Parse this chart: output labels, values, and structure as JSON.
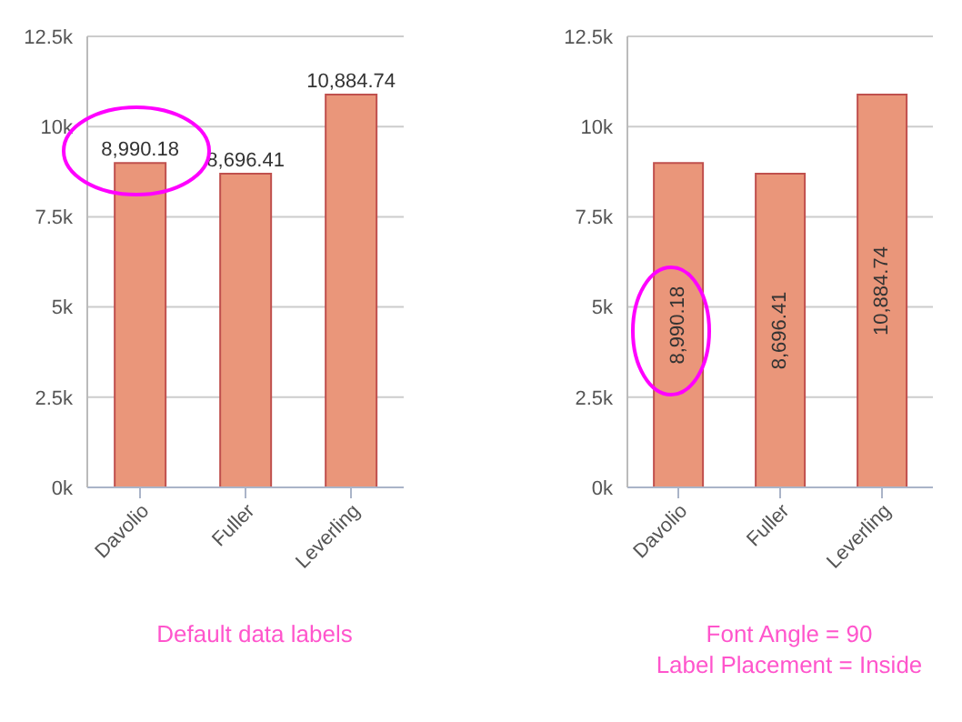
{
  "chart_data": [
    {
      "type": "bar",
      "categories": [
        "Davolio",
        "Fuller",
        "Leverling"
      ],
      "values": [
        8990.18,
        8696.41,
        10884.74
      ],
      "value_labels": [
        "8,990.18",
        "8,696.41",
        "10,884.74"
      ],
      "color": "#ea967a",
      "ylim": [
        0,
        12500
      ],
      "yticks": [
        {
          "value": 0,
          "label": "0k"
        },
        {
          "value": 2500,
          "label": "2.5k"
        },
        {
          "value": 5000,
          "label": "5k"
        },
        {
          "value": 7500,
          "label": "7.5k"
        },
        {
          "value": 10000,
          "label": "10k"
        },
        {
          "value": 12500,
          "label": "12.5k"
        }
      ],
      "grid": "y",
      "annotations": [
        "Default data labels"
      ]
    },
    {
      "type": "bar",
      "categories": [
        "Davolio",
        "Fuller",
        "Leverling"
      ],
      "values": [
        8990.18,
        8696.41,
        10884.74
      ],
      "value_labels": [
        "8,990.18",
        "8,696.41",
        "10,884.74"
      ],
      "color": "#ea967a",
      "ylim": [
        0,
        12500
      ],
      "yticks": [
        {
          "value": 0,
          "label": "0k"
        },
        {
          "value": 2500,
          "label": "2.5k"
        },
        {
          "value": 5000,
          "label": "5k"
        },
        {
          "value": 7500,
          "label": "7.5k"
        },
        {
          "value": 10000,
          "label": "10k"
        },
        {
          "value": 12500,
          "label": "12.5k"
        }
      ],
      "grid": "y",
      "annotations": [
        "Font Angle = 90",
        "Label Placement = Inside"
      ]
    }
  ]
}
